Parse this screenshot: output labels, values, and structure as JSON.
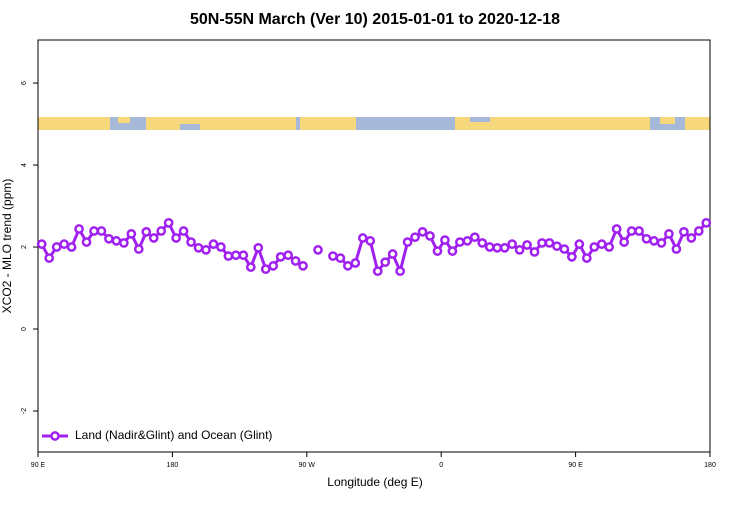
{
  "chart_data": {
    "type": "line",
    "title": "50N-55N March (Ver 10)   2015-01-01 to 2020-12-18",
    "x_label": "Longitude (deg E)",
    "y_label": "XCO2 - MLO trend (ppm)",
    "x": [
      92.5,
      97.5,
      102.5,
      107.5,
      112.5,
      117.5,
      122.5,
      127.5,
      132.5,
      137.5,
      142.5,
      147.5,
      152.5,
      157.5,
      162.5,
      167.5,
      172.5,
      177.5,
      182.5,
      187.5,
      192.5,
      197.5,
      202.5,
      207.5,
      212.5,
      217.5,
      222.5,
      227.5,
      232.5,
      237.5,
      242.5,
      247.5,
      252.5,
      257.5,
      262.5,
      267.5,
      272.5,
      277.5,
      282.5,
      287.5,
      292.5,
      297.5,
      302.5,
      307.5,
      312.5,
      317.5,
      322.5,
      327.5,
      332.5,
      337.5,
      342.5,
      347.5,
      352.5,
      357.5,
      362.5,
      367.5,
      372.5,
      377.5,
      382.5,
      387.5,
      392.5,
      397.5,
      402.5,
      407.5,
      412.5,
      417.5,
      422.5,
      427.5,
      432.5,
      437.5,
      442.5,
      447.5,
      452.5,
      457.5,
      462.5,
      467.5,
      472.5,
      477.5,
      482.5,
      487.5,
      492.5,
      497.5,
      502.5,
      507.5,
      512.5,
      517.5,
      522.5,
      527.5,
      532.5,
      537.5
    ],
    "series": [
      {
        "name": "Land (Nadir&Glint) and Ocean (Glint)",
        "color": "#a020f0",
        "values": [
          2.07,
          1.73,
          2.0,
          2.07,
          2.0,
          2.44,
          2.12,
          2.39,
          2.39,
          2.2,
          2.15,
          2.1,
          2.32,
          1.95,
          2.37,
          2.22,
          2.39,
          2.59,
          2.22,
          2.39,
          2.12,
          1.98,
          1.93,
          2.07,
          2.0,
          1.78,
          1.8,
          1.8,
          1.51,
          1.98,
          1.46,
          1.54,
          1.76,
          1.8,
          1.66,
          1.54,
          null,
          1.93,
          null,
          1.78,
          1.73,
          1.54,
          1.61,
          2.22,
          2.15,
          1.41,
          1.63,
          1.83,
          1.41,
          2.12,
          2.24,
          2.37,
          2.27,
          1.9,
          2.17,
          1.9,
          2.12,
          2.15,
          2.24,
          2.1,
          2.0,
          1.98,
          1.98,
          2.07,
          1.93,
          2.05,
          1.88,
          2.1,
          2.1,
          2.02,
          1.95,
          1.76,
          2.07,
          1.73,
          2.0,
          2.07,
          2.0,
          2.44,
          2.12,
          2.39,
          2.39,
          2.2,
          2.15,
          2.1,
          2.32,
          1.95,
          2.37,
          2.22,
          2.39,
          2.59
        ]
      }
    ],
    "xlim": [
      90,
      540
    ],
    "xticks": [
      {
        "value": 90,
        "label": "90 E"
      },
      180,
      {
        "value": 270,
        "label": "90 W"
      },
      {
        "value": 360,
        "label": "0"
      },
      {
        "value": 450,
        "label": "90 E"
      },
      {
        "value": 540,
        "label": "180"
      }
    ],
    "ylim": [
      -3,
      7.05
    ],
    "yticks": [
      -2,
      0,
      2,
      4,
      6
    ],
    "legend": "bottom-left"
  }
}
